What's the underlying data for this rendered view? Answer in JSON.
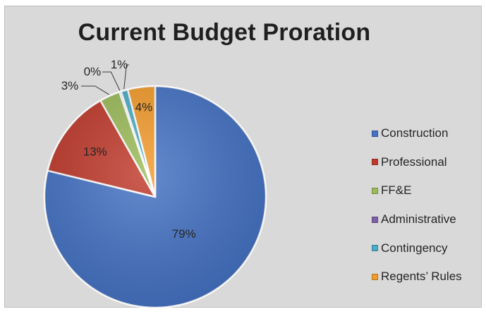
{
  "chart_data": {
    "type": "pie",
    "title": "Current Budget Proration",
    "categories": [
      "Construction",
      "Professional",
      "FF&E",
      "Administrative",
      "Contingency",
      "Regents’ Rules"
    ],
    "values": [
      79,
      13,
      3,
      0,
      1,
      4
    ],
    "labels": [
      "79%",
      "13%",
      "3%",
      "0%",
      "1%",
      "4%"
    ],
    "colors": [
      "#4472c4",
      "#c0392b",
      "#9bbb59",
      "#7f5fa8",
      "#4aacc6",
      "#f39b2b"
    ],
    "legend_position": "right",
    "label_style": [
      "inside",
      "inside",
      "outside-leader",
      "outside-leader",
      "outside-leader",
      "inside"
    ]
  }
}
